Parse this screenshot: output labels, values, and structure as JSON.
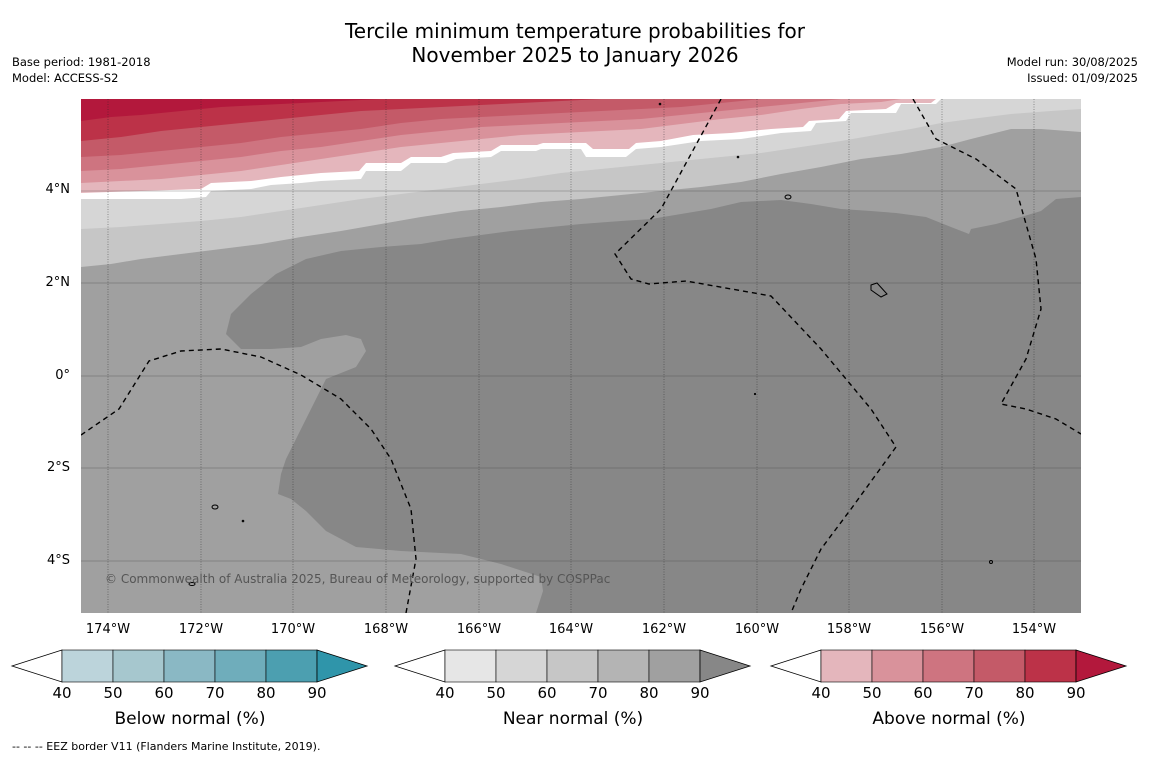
{
  "title_line1": "Tercile minimum temperature probabilities for",
  "title_line2": "November 2025 to January 2026",
  "base_period": "Base period: 1981-2018",
  "model": "Model: ACCESS-S2",
  "model_run": "Model run: 30/08/2025",
  "issued": "Issued: 01/09/2025",
  "copyright": "© Commonwealth of Australia 2025, Bureau of Meteorology, supported by COSPPac",
  "footnote": "--  --  -- EEZ border V11 (Flanders Marine Institute, 2019).",
  "lat_labels": [
    "4°N",
    "2°N",
    "0°",
    "2°S",
    "4°S"
  ],
  "lon_labels": [
    "174°W",
    "172°W",
    "170°W",
    "168°W",
    "166°W",
    "164°W",
    "162°W",
    "160°W",
    "158°W",
    "156°W",
    "154°W"
  ],
  "colorbars": [
    {
      "label": "Below normal (%)",
      "ticks": [
        "40",
        "50",
        "60",
        "70",
        "80",
        "90"
      ],
      "colors": [
        "#ffffff",
        "#bcd4db",
        "#a6c7ce",
        "#8ab8c4",
        "#6fadbb",
        "#4c9fb0",
        "#2f95aa"
      ]
    },
    {
      "label": "Near normal (%)",
      "ticks": [
        "40",
        "50",
        "60",
        "70",
        "80",
        "90"
      ],
      "colors": [
        "#ffffff",
        "#e6e6e6",
        "#d6d6d6",
        "#c6c6c6",
        "#b4b4b4",
        "#a0a0a0",
        "#878787"
      ]
    },
    {
      "label": "Above normal (%)",
      "ticks": [
        "40",
        "50",
        "60",
        "70",
        "80",
        "90"
      ],
      "colors": [
        "#ffffff",
        "#e4b6bc",
        "#d9929b",
        "#ce7480",
        "#c45a68",
        "#bc3248",
        "#b3183c"
      ]
    }
  ],
  "colors": {
    "near_90": "#878787",
    "near_80": "#a0a0a0",
    "near_70": "#c6c6c6",
    "near_60": "#d6d6d6",
    "above_50": "#e4b6bc",
    "above_60": "#d9929b",
    "above_70": "#ce7480",
    "above_80": "#c45a68",
    "above_90": "#bc3248"
  }
}
